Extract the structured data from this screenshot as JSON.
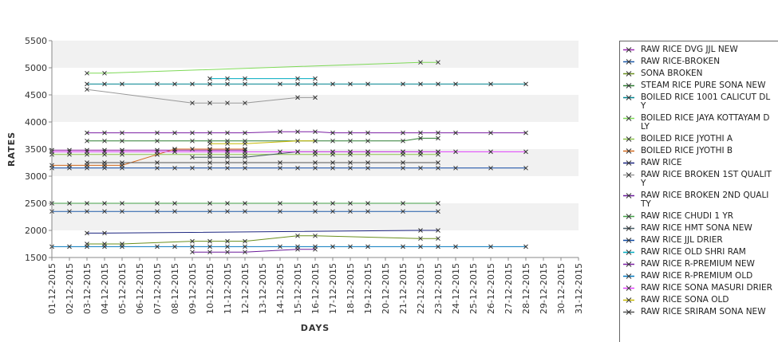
{
  "chart_data": {
    "type": "line",
    "xlabel": "DAYS",
    "ylabel": "RATES",
    "ylim": [
      1500,
      5500
    ],
    "yticks": [
      1500,
      2000,
      2500,
      3000,
      3500,
      4000,
      4500,
      5000,
      5500
    ],
    "categories": [
      "01-12-2015",
      "02-12-2015",
      "03-12-2015",
      "04-12-2015",
      "05-12-2015",
      "06-12-2015",
      "07-12-2015",
      "08-12-2015",
      "09-12-2015",
      "10-12-2015",
      "11-12-2015",
      "12-12-2015",
      "13-12-2015",
      "14-12-2015",
      "15-12-2015",
      "16-12-2015",
      "17-12-2015",
      "18-12-2015",
      "19-12-2015",
      "20-12-2015",
      "21-12-2015",
      "22-12-2015",
      "23-12-2015",
      "24-12-2015",
      "25-12-2015",
      "26-12-2015",
      "27-12-2015",
      "28-12-2015",
      "29-12-2015",
      "30-12-2015",
      "31-12-2015"
    ],
    "grid": "horizontal bands",
    "legend_position": "right",
    "series": [
      {
        "name": "RAW RICE DVG JJL NEW",
        "color": "#9c27b0",
        "points": [
          [
            0,
            3480
          ],
          [
            1,
            3480
          ],
          [
            2,
            3480
          ],
          [
            3,
            3480
          ],
          [
            4,
            3480
          ],
          [
            6,
            3480
          ],
          [
            7,
            3480
          ],
          [
            9,
            3480
          ],
          [
            10,
            3480
          ],
          [
            11,
            3480
          ]
        ]
      },
      {
        "name": "RAW RICE-BROKEN",
        "color": "#1e5aa8",
        "points": [
          [
            0,
            2350
          ],
          [
            1,
            2350
          ],
          [
            2,
            2350
          ],
          [
            3,
            2350
          ],
          [
            4,
            2350
          ],
          [
            6,
            2350
          ],
          [
            7,
            2350
          ],
          [
            9,
            2350
          ],
          [
            10,
            2350
          ],
          [
            11,
            2350
          ],
          [
            13,
            2350
          ],
          [
            15,
            2350
          ],
          [
            16,
            2350
          ],
          [
            17,
            2350
          ],
          [
            18,
            2350
          ],
          [
            20,
            2350
          ],
          [
            22,
            2350
          ]
        ]
      },
      {
        "name": "SONA BROKEN",
        "color": "#6a8f1e",
        "points": [
          [
            2,
            1750
          ],
          [
            3,
            1750
          ],
          [
            4,
            1750
          ],
          [
            8,
            1800
          ],
          [
            9,
            1800
          ],
          [
            10,
            1800
          ],
          [
            11,
            1800
          ],
          [
            14,
            1900
          ],
          [
            15,
            1900
          ],
          [
            21,
            1850
          ],
          [
            22,
            1850
          ]
        ]
      },
      {
        "name": "STEAM RICE PURE SONA NEW",
        "color": "#2e7d32",
        "points": [
          [
            2,
            3650
          ],
          [
            3,
            3650
          ],
          [
            4,
            3650
          ],
          [
            6,
            3650
          ],
          [
            8,
            3650
          ],
          [
            9,
            3650
          ],
          [
            10,
            3650
          ],
          [
            11,
            3650
          ],
          [
            15,
            3650
          ],
          [
            16,
            3650
          ],
          [
            17,
            3650
          ],
          [
            18,
            3650
          ],
          [
            20,
            3650
          ],
          [
            21,
            3700
          ],
          [
            22,
            3700
          ]
        ]
      },
      {
        "name": "BOILED RICE 1001 CALICUT DLY",
        "color": "#00838f",
        "points": [
          [
            2,
            4700
          ],
          [
            3,
            4700
          ],
          [
            4,
            4700
          ],
          [
            6,
            4700
          ],
          [
            7,
            4700
          ],
          [
            8,
            4700
          ],
          [
            9,
            4700
          ],
          [
            10,
            4700
          ],
          [
            11,
            4700
          ],
          [
            13,
            4700
          ],
          [
            14,
            4700
          ],
          [
            15,
            4700
          ],
          [
            16,
            4700
          ],
          [
            17,
            4700
          ],
          [
            18,
            4700
          ],
          [
            20,
            4700
          ],
          [
            21,
            4700
          ],
          [
            22,
            4700
          ],
          [
            23,
            4700
          ],
          [
            25,
            4700
          ],
          [
            27,
            4700
          ]
        ]
      },
      {
        "name": "BOILED RICE JAYA KOTTAYAM DLY",
        "color": "#7ed957",
        "points": [
          [
            2,
            4900
          ],
          [
            3,
            4900
          ],
          [
            21,
            5100
          ],
          [
            22,
            5100
          ]
        ]
      },
      {
        "name": "BOILED RICE JYOTHI A",
        "color": "#8bc34a",
        "points": [
          [
            0,
            3400
          ],
          [
            1,
            3400
          ],
          [
            2,
            3400
          ],
          [
            3,
            3400
          ],
          [
            4,
            3400
          ],
          [
            6,
            3400
          ],
          [
            9,
            3400
          ],
          [
            10,
            3400
          ],
          [
            11,
            3400
          ],
          [
            15,
            3400
          ],
          [
            16,
            3400
          ],
          [
            17,
            3400
          ],
          [
            18,
            3400
          ],
          [
            20,
            3400
          ],
          [
            21,
            3400
          ],
          [
            22,
            3400
          ]
        ]
      },
      {
        "name": "BOILED RICE JYOTHI B",
        "color": "#d2691e",
        "points": [
          [
            0,
            3200
          ],
          [
            1,
            3200
          ],
          [
            2,
            3200
          ],
          [
            3,
            3200
          ],
          [
            4,
            3200
          ],
          [
            6,
            3400
          ],
          [
            7,
            3500
          ],
          [
            8,
            3500
          ],
          [
            9,
            3500
          ],
          [
            10,
            3500
          ],
          [
            11,
            3500
          ]
        ]
      },
      {
        "name": "RAW RICE",
        "color": "#1a237e",
        "points": [
          [
            2,
            1950
          ],
          [
            3,
            1950
          ],
          [
            21,
            2000
          ],
          [
            22,
            2000
          ]
        ]
      },
      {
        "name": "RAW RICE BROKEN 1ST QUALITY",
        "color": "#999999",
        "points": [
          [
            2,
            4600
          ],
          [
            8,
            4350
          ],
          [
            9,
            4350
          ],
          [
            10,
            4350
          ],
          [
            11,
            4350
          ],
          [
            14,
            4450
          ],
          [
            15,
            4450
          ]
        ]
      },
      {
        "name": "RAW RICE BROKEN 2ND QUALITY",
        "color": "#6a1b9a",
        "points": [
          [
            8,
            1600
          ],
          [
            9,
            1600
          ],
          [
            10,
            1600
          ],
          [
            11,
            1600
          ],
          [
            14,
            1650
          ],
          [
            15,
            1650
          ]
        ]
      },
      {
        "name": "RAW RICE CHUDI 1 YR",
        "color": "#43a047",
        "points": [
          [
            0,
            2500
          ],
          [
            1,
            2500
          ],
          [
            2,
            2500
          ],
          [
            3,
            2500
          ],
          [
            4,
            2500
          ],
          [
            6,
            2500
          ],
          [
            7,
            2500
          ],
          [
            9,
            2500
          ],
          [
            10,
            2500
          ],
          [
            11,
            2500
          ],
          [
            13,
            2500
          ],
          [
            15,
            2500
          ],
          [
            16,
            2500
          ],
          [
            17,
            2500
          ],
          [
            18,
            2500
          ],
          [
            20,
            2500
          ],
          [
            22,
            2500
          ]
        ]
      },
      {
        "name": "RAW RICE HMT SONA NEW",
        "color": "#455a64",
        "points": [
          [
            8,
            3350
          ],
          [
            9,
            3350
          ],
          [
            10,
            3350
          ],
          [
            11,
            3350
          ],
          [
            14,
            3450
          ],
          [
            15,
            3450
          ],
          [
            16,
            3450
          ],
          [
            17,
            3450
          ],
          [
            18,
            3450
          ],
          [
            20,
            3450
          ],
          [
            21,
            3450
          ],
          [
            22,
            3450
          ]
        ]
      },
      {
        "name": "RAW RICE JJL DRIER",
        "color": "#0d47a1",
        "points": [
          [
            0,
            3150
          ],
          [
            1,
            3150
          ],
          [
            2,
            3150
          ],
          [
            3,
            3150
          ],
          [
            4,
            3150
          ],
          [
            6,
            3150
          ],
          [
            7,
            3150
          ],
          [
            8,
            3150
          ],
          [
            9,
            3150
          ],
          [
            10,
            3150
          ],
          [
            11,
            3150
          ],
          [
            13,
            3150
          ],
          [
            14,
            3150
          ],
          [
            15,
            3150
          ],
          [
            16,
            3150
          ],
          [
            17,
            3150
          ],
          [
            18,
            3150
          ],
          [
            20,
            3150
          ],
          [
            21,
            3150
          ],
          [
            22,
            3150
          ],
          [
            23,
            3150
          ],
          [
            25,
            3150
          ],
          [
            27,
            3150
          ]
        ]
      },
      {
        "name": "RAW RICE OLD SHRI RAM",
        "color": "#00acc1",
        "points": [
          [
            9,
            4800
          ],
          [
            10,
            4800
          ],
          [
            11,
            4800
          ],
          [
            14,
            4800
          ],
          [
            15,
            4800
          ]
        ]
      },
      {
        "name": "RAW RICE R-PREMIUM NEW",
        "color": "#7b1fa2",
        "points": [
          [
            2,
            3800
          ],
          [
            3,
            3800
          ],
          [
            4,
            3800
          ],
          [
            6,
            3800
          ],
          [
            7,
            3800
          ],
          [
            8,
            3800
          ],
          [
            9,
            3800
          ],
          [
            10,
            3800
          ],
          [
            11,
            3800
          ],
          [
            13,
            3820
          ],
          [
            14,
            3820
          ],
          [
            15,
            3820
          ],
          [
            16,
            3800
          ],
          [
            17,
            3800
          ],
          [
            18,
            3800
          ],
          [
            20,
            3800
          ],
          [
            21,
            3800
          ],
          [
            22,
            3800
          ],
          [
            23,
            3800
          ],
          [
            25,
            3800
          ],
          [
            27,
            3800
          ]
        ]
      },
      {
        "name": "RAW RICE R-PREMIUM OLD",
        "color": "#0277bd",
        "points": [
          [
            0,
            1700
          ],
          [
            1,
            1700
          ],
          [
            2,
            1700
          ],
          [
            3,
            1700
          ],
          [
            4,
            1700
          ],
          [
            6,
            1700
          ],
          [
            7,
            1700
          ],
          [
            8,
            1700
          ],
          [
            9,
            1700
          ],
          [
            10,
            1700
          ],
          [
            11,
            1700
          ],
          [
            13,
            1700
          ],
          [
            14,
            1700
          ],
          [
            15,
            1700
          ],
          [
            16,
            1700
          ],
          [
            17,
            1700
          ],
          [
            18,
            1700
          ],
          [
            20,
            1700
          ],
          [
            21,
            1700
          ],
          [
            22,
            1700
          ],
          [
            23,
            1700
          ],
          [
            25,
            1700
          ],
          [
            27,
            1700
          ]
        ]
      },
      {
        "name": "RAW RICE SONA MASURI DRIER",
        "color": "#e040fb",
        "points": [
          [
            0,
            3450
          ],
          [
            1,
            3450
          ],
          [
            2,
            3450
          ],
          [
            3,
            3450
          ],
          [
            4,
            3450
          ],
          [
            6,
            3450
          ],
          [
            7,
            3450
          ],
          [
            9,
            3450
          ],
          [
            10,
            3450
          ],
          [
            11,
            3450
          ],
          [
            13,
            3450
          ],
          [
            14,
            3450
          ],
          [
            15,
            3450
          ],
          [
            16,
            3450
          ],
          [
            17,
            3450
          ],
          [
            18,
            3450
          ],
          [
            20,
            3450
          ],
          [
            21,
            3450
          ],
          [
            22,
            3450
          ],
          [
            23,
            3450
          ],
          [
            25,
            3450
          ],
          [
            27,
            3450
          ]
        ]
      },
      {
        "name": "RAW RICE SONA OLD",
        "color": "#c6b800",
        "points": [
          [
            9,
            3600
          ],
          [
            10,
            3600
          ],
          [
            11,
            3600
          ],
          [
            14,
            3650
          ],
          [
            15,
            3650
          ]
        ]
      },
      {
        "name": "RAW RICE SRIRAM SONA NEW",
        "color": "#555555",
        "points": [
          [
            2,
            3250
          ],
          [
            3,
            3250
          ],
          [
            4,
            3250
          ],
          [
            6,
            3250
          ],
          [
            9,
            3250
          ],
          [
            10,
            3250
          ],
          [
            11,
            3250
          ],
          [
            13,
            3250
          ],
          [
            15,
            3250
          ],
          [
            16,
            3250
          ],
          [
            17,
            3250
          ],
          [
            18,
            3250
          ],
          [
            20,
            3250
          ],
          [
            22,
            3250
          ]
        ]
      }
    ]
  }
}
